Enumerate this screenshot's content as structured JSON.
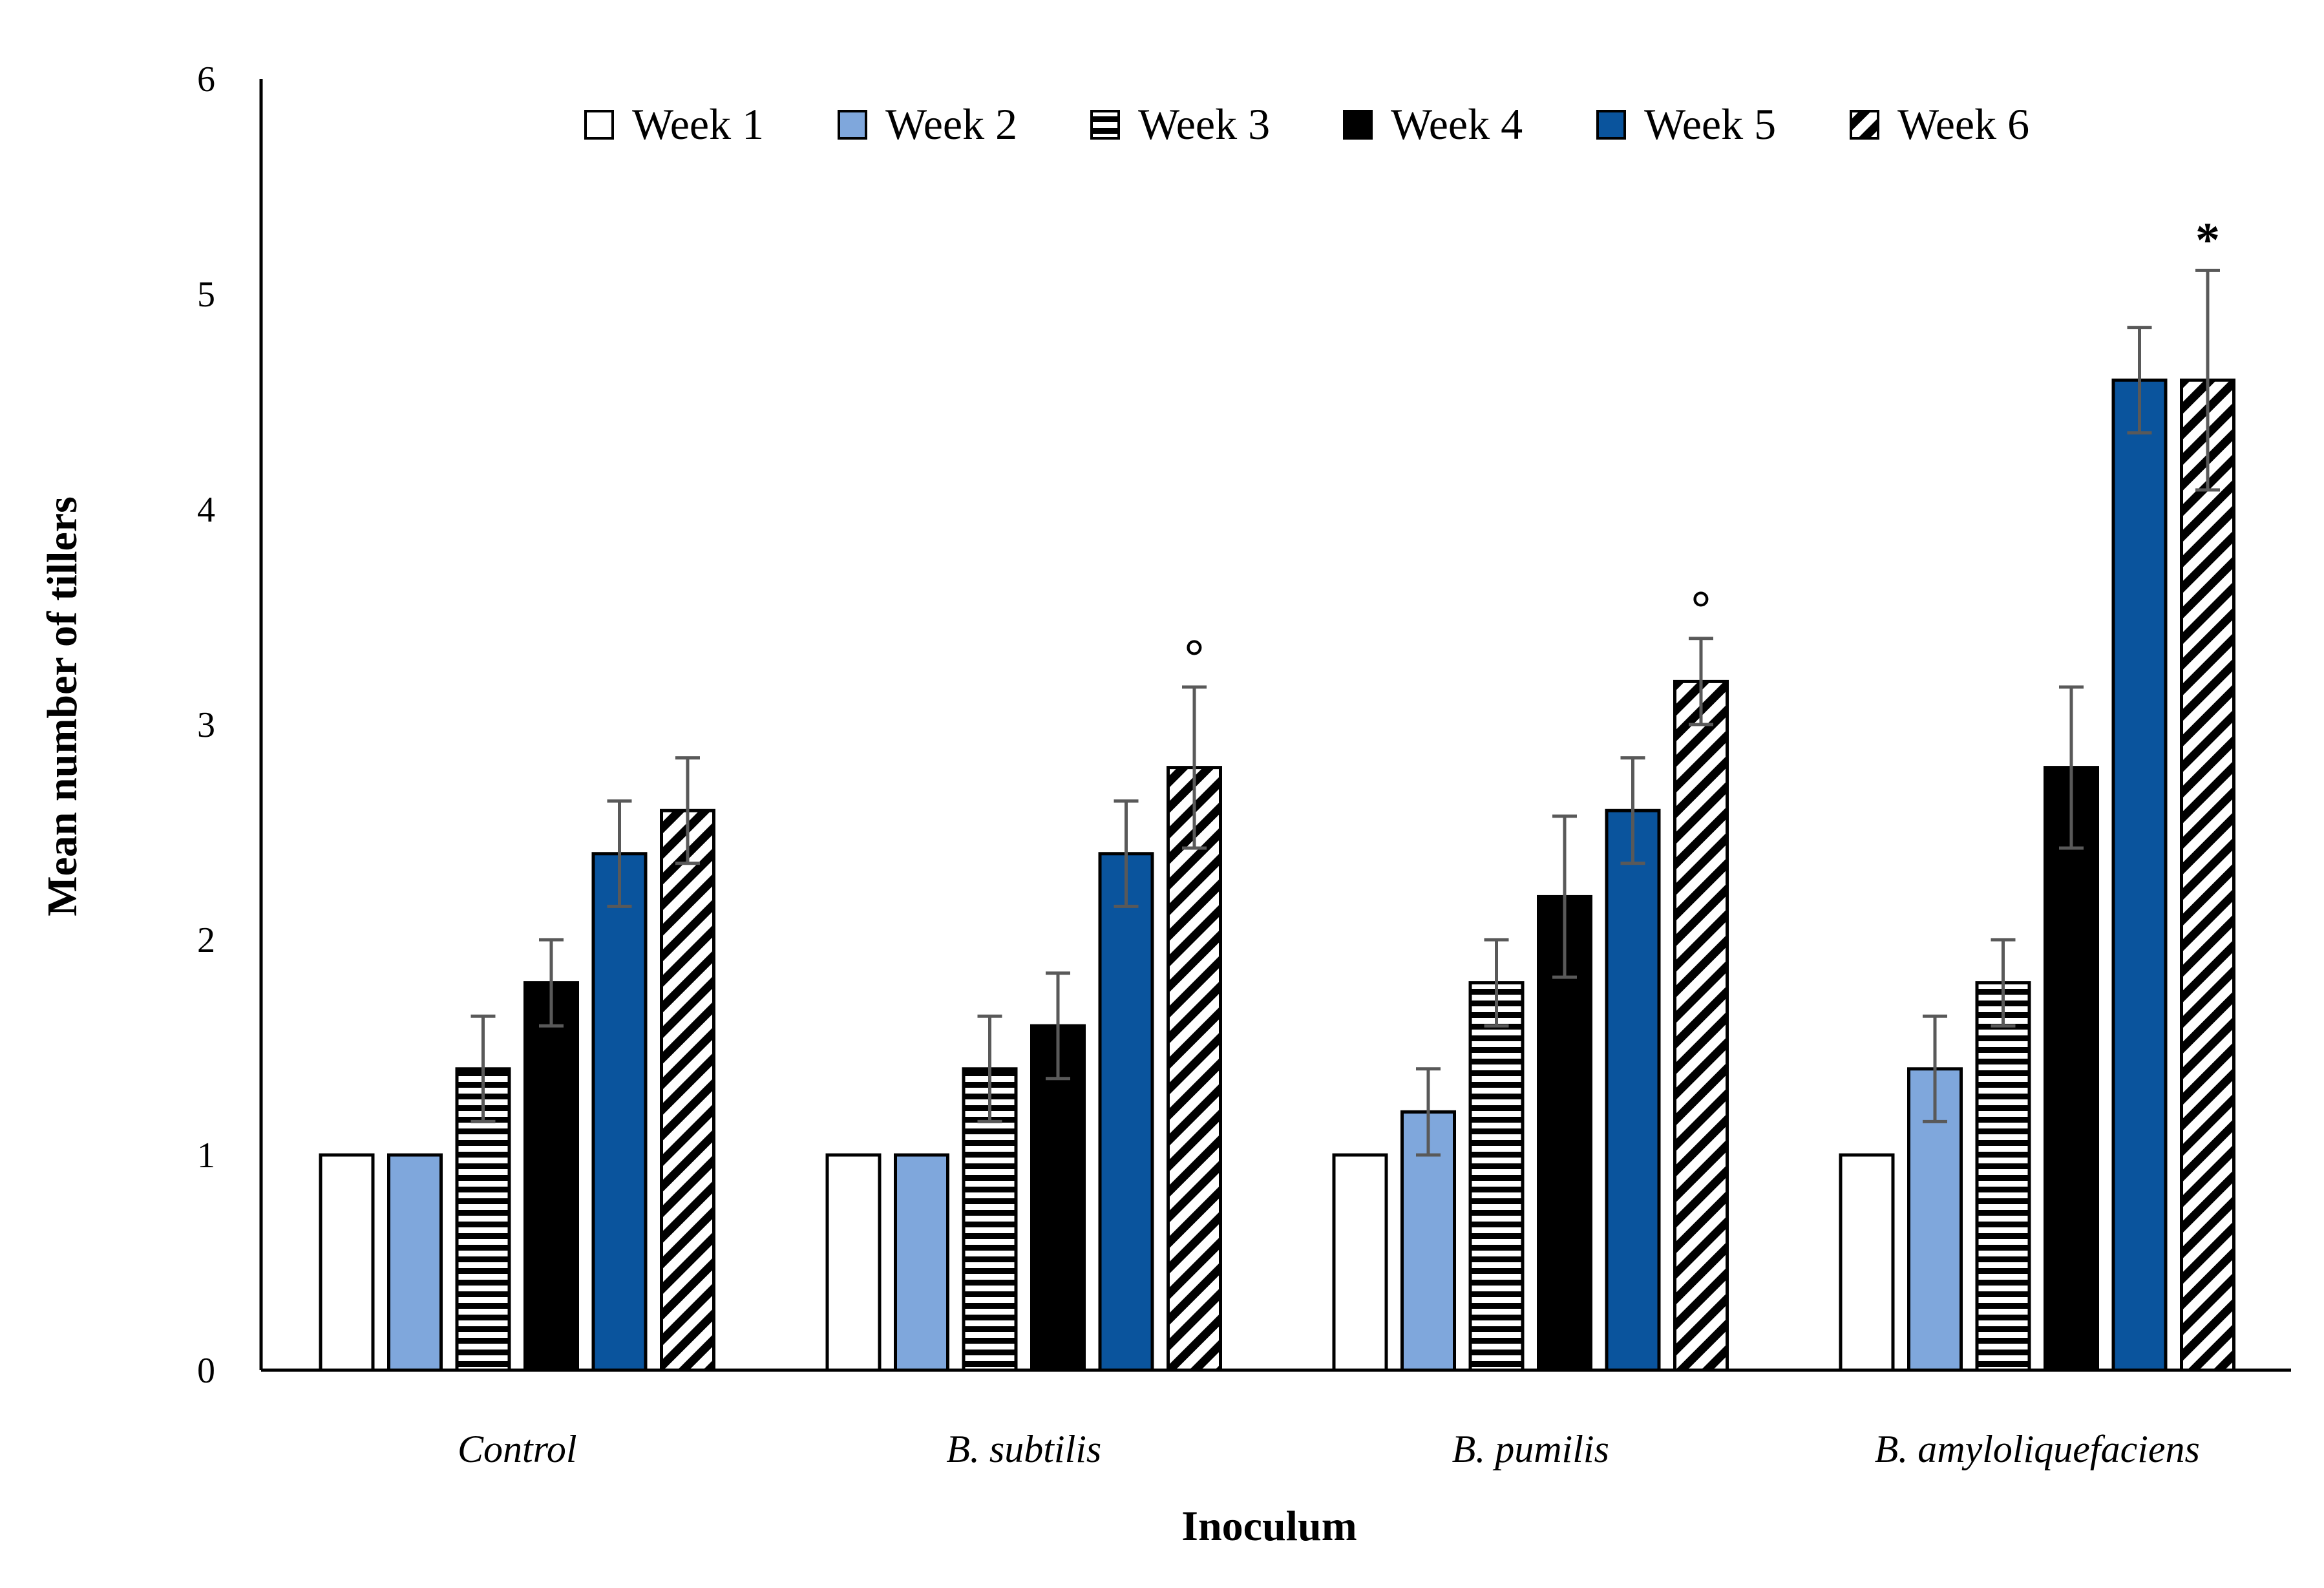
{
  "chart_data": {
    "type": "bar",
    "title": "",
    "xlabel": "Inoculum",
    "ylabel": "Mean number of tillers",
    "ylim": [
      0,
      6
    ],
    "yticks": [
      0,
      1,
      2,
      3,
      4,
      5,
      6
    ],
    "grid": false,
    "legend_position": "top",
    "categories": [
      "Control",
      "B. subtilis",
      "B. pumilis",
      "B. amyloliquefaciens"
    ],
    "series": [
      {
        "name": "Week 1",
        "fill": "white",
        "values": [
          1.0,
          1.0,
          1.0,
          1.0
        ],
        "errors": [
          0,
          0,
          0,
          0
        ]
      },
      {
        "name": "Week 2",
        "fill": "#7fa7dc",
        "values": [
          1.0,
          1.0,
          1.2,
          1.4
        ],
        "errors": [
          0,
          0,
          0.2,
          0.245
        ]
      },
      {
        "name": "Week 3",
        "fill": "horizontal-stripes",
        "values": [
          1.4,
          1.4,
          1.8,
          1.8
        ],
        "errors": [
          0.245,
          0.245,
          0.2,
          0.2
        ]
      },
      {
        "name": "Week 4",
        "fill": "#000000",
        "values": [
          1.8,
          1.6,
          2.2,
          2.8
        ],
        "errors": [
          0.2,
          0.245,
          0.374,
          0.374
        ]
      },
      {
        "name": "Week 5",
        "fill": "#0a549d",
        "values": [
          2.4,
          2.4,
          2.6,
          4.6
        ],
        "errors": [
          0.245,
          0.245,
          0.245,
          0.245
        ]
      },
      {
        "name": "Week 6",
        "fill": "diagonal-stripes",
        "values": [
          2.6,
          2.8,
          3.2,
          4.6
        ],
        "errors": [
          0.245,
          0.374,
          0.2,
          0.51
        ]
      }
    ],
    "annotations": [
      {
        "category": "B. subtilis",
        "series": "Week 6",
        "text": "°"
      },
      {
        "category": "B. pumilis",
        "series": "Week 6",
        "text": "°"
      },
      {
        "category": "B. amyloliquefaciens",
        "series": "Week 6",
        "text": "*"
      }
    ]
  },
  "colors": {
    "axis": "#000000",
    "error_bar": "#595959",
    "bar_outline": "#000000"
  }
}
